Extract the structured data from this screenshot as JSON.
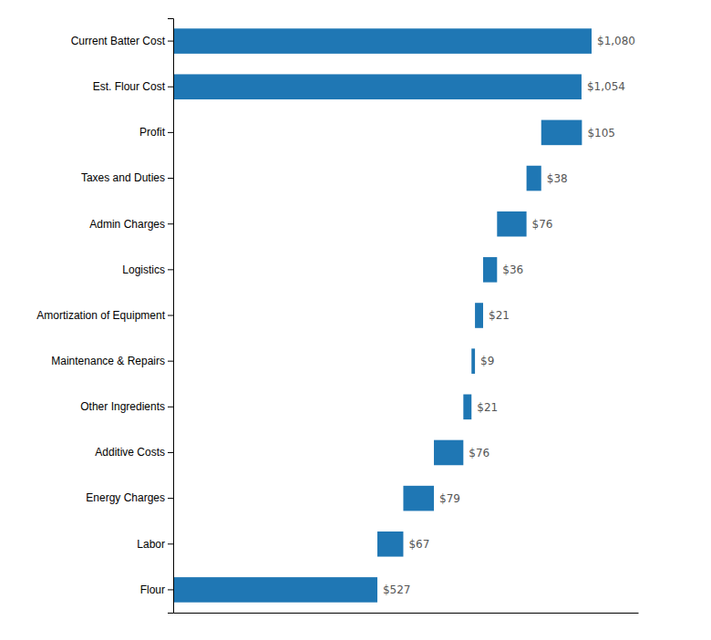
{
  "chart_data": {
    "type": "bar",
    "orientation": "horizontal",
    "categories": [
      "Current Batter Cost",
      "Est. Flour Cost",
      "Profit",
      "Taxes and Duties",
      "Admin Charges",
      "Logistics",
      "Amortization of Equipment",
      "Maintenance & Repairs",
      "Other Ingredients",
      "Additive Costs",
      "Energy Charges",
      "Labor",
      "Flour"
    ],
    "values": [
      1080,
      1054,
      105,
      38,
      76,
      36,
      21,
      9,
      21,
      76,
      79,
      67,
      527
    ],
    "base": [
      0,
      0,
      950,
      912,
      836,
      800,
      779,
      770,
      749,
      673,
      594,
      527,
      0
    ],
    "value_labels": [
      "$1,080",
      "$1,054",
      "$105",
      "$38",
      "$76",
      "$36",
      "$21",
      "$9",
      "$21",
      "$76",
      "$79",
      "$67",
      "$527"
    ],
    "data_labels": true,
    "xlim": [
      0,
      1200
    ],
    "tick_labels": "y",
    "grid": false
  }
}
